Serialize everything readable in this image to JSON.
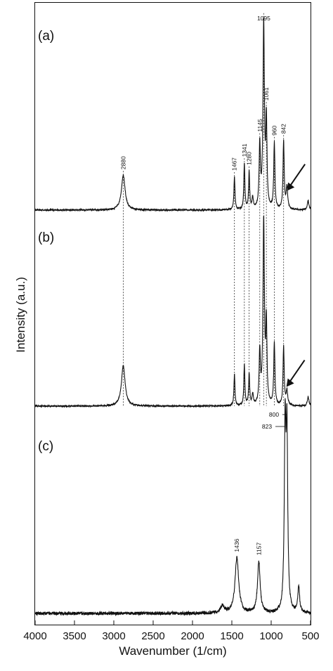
{
  "chart_data": {
    "type": "line",
    "xlabel": "Wavenumber (1/cm)",
    "ylabel": "Intensity (a.u.)",
    "xlim": [
      4000,
      500
    ],
    "x_reversed": true,
    "xticks": [
      4000,
      3500,
      3000,
      2500,
      2000,
      1500,
      1000,
      500
    ],
    "xtick_labels": [
      "4000",
      "3500",
      "3000",
      "2500",
      "2000",
      "1500",
      "1000",
      "500"
    ],
    "yticks": "none",
    "grid": false,
    "series": [
      {
        "name": "(a)",
        "baseline": 0.02,
        "peaks": [
          {
            "x": 2880,
            "height": 0.19,
            "width": 28,
            "label": "2880"
          },
          {
            "x": 1467,
            "height": 0.18,
            "width": 8,
            "label": "1467"
          },
          {
            "x": 1341,
            "height": 0.25,
            "width": 8,
            "label": "1341"
          },
          {
            "x": 1280,
            "height": 0.2,
            "width": 8,
            "label": "1280"
          },
          {
            "x": 1235,
            "height": 0.06,
            "width": 10
          },
          {
            "x": 1145,
            "height": 0.34,
            "width": 10,
            "label": "1145"
          },
          {
            "x": 1095,
            "height": 1.0,
            "width": 11,
            "label": "1095"
          },
          {
            "x": 1061,
            "height": 0.46,
            "width": 9,
            "label": "1061"
          },
          {
            "x": 960,
            "height": 0.36,
            "width": 9,
            "label": "960"
          },
          {
            "x": 842,
            "height": 0.37,
            "width": 9,
            "label": "842"
          },
          {
            "x": 800,
            "height": 0.12,
            "width": 12
          },
          {
            "x": 530,
            "height": 0.05,
            "width": 12
          }
        ],
        "annotations": [
          {
            "type": "arrow",
            "target_x": 820
          }
        ]
      },
      {
        "name": "(b)",
        "baseline": 0.02,
        "peaks": [
          {
            "x": 2880,
            "height": 0.22,
            "width": 28
          },
          {
            "x": 1467,
            "height": 0.17,
            "width": 8
          },
          {
            "x": 1341,
            "height": 0.22,
            "width": 8
          },
          {
            "x": 1280,
            "height": 0.17,
            "width": 8
          },
          {
            "x": 1235,
            "height": 0.06,
            "width": 10
          },
          {
            "x": 1145,
            "height": 0.28,
            "width": 10
          },
          {
            "x": 1095,
            "height": 1.0,
            "width": 11
          },
          {
            "x": 1061,
            "height": 0.42,
            "width": 9
          },
          {
            "x": 960,
            "height": 0.34,
            "width": 9
          },
          {
            "x": 842,
            "height": 0.32,
            "width": 9
          },
          {
            "x": 800,
            "height": 0.08,
            "width": 12
          },
          {
            "x": 530,
            "height": 0.05,
            "width": 12
          }
        ],
        "annotations": [
          {
            "type": "arrow",
            "target_x": 825
          }
        ]
      },
      {
        "name": "(c)",
        "baseline": 0.03,
        "peaks": [
          {
            "x": 1436,
            "height": 0.3,
            "width": 28,
            "label": "1436"
          },
          {
            "x": 1157,
            "height": 0.28,
            "width": 20,
            "label": "1157"
          },
          {
            "x": 823,
            "height": 0.96,
            "width": 12,
            "label": "823"
          },
          {
            "x": 800,
            "height": 0.93,
            "width": 12,
            "label": "800"
          },
          {
            "x": 650,
            "height": 0.14,
            "width": 14
          },
          {
            "x": 1620,
            "height": 0.04,
            "width": 30
          }
        ]
      }
    ],
    "reference_lines_x": [
      2880,
      1467,
      1341,
      1280,
      1145,
      1095,
      1061,
      960,
      842
    ]
  }
}
